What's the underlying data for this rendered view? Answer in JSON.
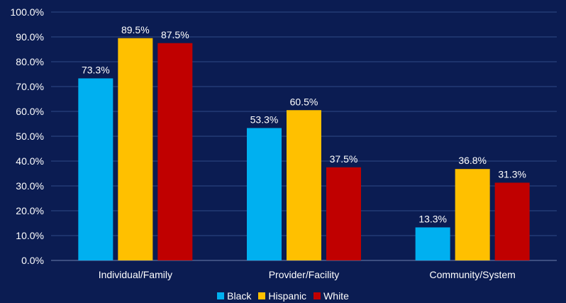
{
  "chart_data": {
    "type": "bar",
    "categories": [
      "Individual/Family",
      "Provider/Facility",
      "Community/System"
    ],
    "series": [
      {
        "name": "Black",
        "values": [
          73.3,
          53.3,
          13.3
        ],
        "labels": [
          "73.3%",
          "53.3%",
          "13.3%"
        ],
        "color": "#00b0f0"
      },
      {
        "name": "Hispanic",
        "values": [
          89.5,
          60.5,
          36.8
        ],
        "labels": [
          "89.5%",
          "60.5%",
          "36.8%"
        ],
        "color": "#ffc000"
      },
      {
        "name": "White",
        "values": [
          87.5,
          37.5,
          31.3
        ],
        "labels": [
          "87.5%",
          "37.5%",
          "31.3%"
        ],
        "color": "#c00000"
      }
    ],
    "ylim": [
      0,
      100
    ],
    "yticks": [
      "0.0%",
      "10.0%",
      "20.0%",
      "30.0%",
      "40.0%",
      "50.0%",
      "60.0%",
      "70.0%",
      "80.0%",
      "90.0%",
      "100.0%"
    ],
    "grid": true,
    "legend_position": "bottom",
    "background": "#0b1c52",
    "gridline_color": "#2f4a86"
  }
}
